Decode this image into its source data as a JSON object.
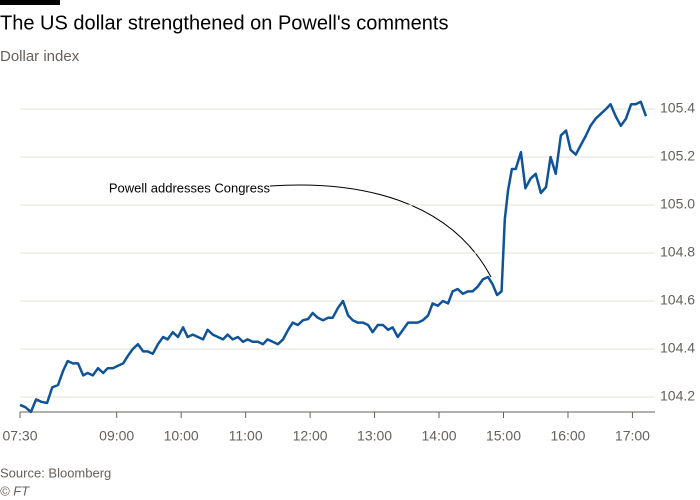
{
  "chart_data": {
    "type": "line",
    "title": "The US dollar strengthened on Powell's comments",
    "subtitle": "Dollar index",
    "annotation": "Powell addresses Congress",
    "source": "Source: Bloomberg",
    "credit": "© FT",
    "color": "#0f5499",
    "grid": true,
    "x": [
      7.5,
      7.58,
      7.67,
      7.75,
      7.83,
      7.92,
      8.0,
      8.09,
      8.17,
      8.24,
      8.32,
      8.4,
      8.48,
      8.55,
      8.63,
      8.71,
      8.79,
      8.86,
      8.94,
      9.02,
      9.1,
      9.17,
      9.25,
      9.33,
      9.41,
      9.48,
      9.56,
      9.64,
      9.72,
      9.79,
      9.87,
      9.95,
      10.03,
      10.1,
      10.18,
      10.26,
      10.34,
      10.41,
      10.49,
      10.57,
      10.65,
      10.72,
      10.8,
      10.88,
      10.96,
      11.03,
      11.11,
      11.19,
      11.27,
      11.34,
      11.42,
      11.5,
      11.58,
      11.66,
      11.73,
      11.81,
      11.89,
      11.97,
      12.04,
      12.12,
      12.2,
      12.28,
      12.35,
      12.43,
      12.51,
      12.59,
      12.66,
      12.74,
      12.82,
      12.9,
      12.97,
      13.05,
      13.13,
      13.21,
      13.28,
      13.36,
      13.44,
      13.52,
      13.59,
      13.67,
      13.75,
      13.83,
      13.9,
      13.98,
      14.06,
      14.14,
      14.21,
      14.29,
      14.37,
      14.45,
      14.52,
      14.6,
      14.68,
      14.76,
      14.83,
      14.9,
      14.97,
      15.02,
      15.07,
      15.13,
      15.19,
      15.27,
      15.34,
      15.42,
      15.5,
      15.58,
      15.66,
      15.73,
      15.81,
      15.89,
      15.97,
      16.04,
      16.12,
      16.2,
      16.28,
      16.35,
      16.43,
      16.51,
      16.59,
      16.66,
      16.74,
      16.82,
      16.9,
      16.98,
      17.05,
      17.13,
      17.21
    ],
    "values": [
      104.167,
      104.158,
      104.138,
      104.19,
      104.18,
      104.175,
      104.24,
      104.25,
      104.31,
      104.35,
      104.34,
      104.34,
      104.29,
      104.3,
      104.29,
      104.32,
      104.3,
      104.32,
      104.32,
      104.33,
      104.34,
      104.37,
      104.4,
      104.42,
      104.39,
      104.39,
      104.38,
      104.42,
      104.45,
      104.44,
      104.47,
      104.45,
      104.49,
      104.45,
      104.46,
      104.45,
      104.44,
      104.48,
      104.46,
      104.45,
      104.44,
      104.46,
      104.44,
      104.45,
      104.43,
      104.44,
      104.43,
      104.43,
      104.42,
      104.44,
      104.43,
      104.42,
      104.44,
      104.48,
      104.51,
      104.5,
      104.52,
      104.525,
      104.55,
      104.53,
      104.52,
      104.53,
      104.53,
      104.57,
      104.6,
      104.54,
      104.52,
      104.51,
      104.51,
      104.5,
      104.47,
      104.5,
      104.5,
      104.48,
      104.49,
      104.45,
      104.48,
      104.51,
      104.51,
      104.51,
      104.52,
      104.54,
      104.59,
      104.58,
      104.6,
      104.59,
      104.64,
      104.65,
      104.63,
      104.64,
      104.64,
      104.66,
      104.69,
      104.7,
      104.67,
      104.625,
      104.64,
      104.94,
      105.06,
      105.15,
      105.15,
      105.22,
      105.07,
      105.11,
      105.13,
      105.05,
      105.075,
      105.2,
      105.13,
      105.29,
      105.31,
      105.23,
      105.21,
      105.25,
      105.29,
      105.33,
      105.36,
      105.38,
      105.4,
      105.42,
      105.37,
      105.33,
      105.36,
      105.42,
      105.42,
      105.43,
      105.37
    ],
    "xlim": [
      7.5,
      17.35
    ],
    "xticks": [
      {
        "value": 7.5,
        "label": "07:30"
      },
      {
        "value": 9,
        "label": "09:00"
      },
      {
        "value": 10,
        "label": "10:00"
      },
      {
        "value": 11,
        "label": "11:00"
      },
      {
        "value": 12,
        "label": "12:00"
      },
      {
        "value": 13,
        "label": "13:00"
      },
      {
        "value": 14,
        "label": "14:00"
      },
      {
        "value": 15,
        "label": "15:00"
      },
      {
        "value": 16,
        "label": "16:00"
      },
      {
        "value": 17,
        "label": "17:00"
      }
    ],
    "ylim": [
      104.13,
      105.48
    ],
    "yticks": [
      104.2,
      104.4,
      104.6,
      104.8,
      {
        "value": 105,
        "label": "105.0"
      },
      105.2,
      105.4
    ]
  }
}
